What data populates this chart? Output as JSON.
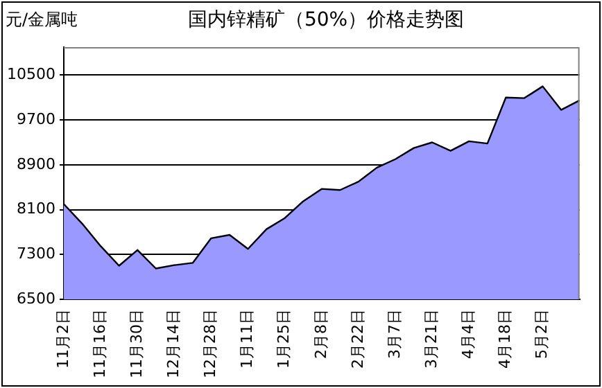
{
  "chart_data": {
    "type": "area",
    "title": "国内锌精矿（50%）价格走势图",
    "ylabel": "元/金属吨",
    "categories": [
      "11月2日",
      null,
      "11月16日",
      null,
      "11月30日",
      null,
      "12月14日",
      null,
      "12月28日",
      null,
      "1月11日",
      null,
      "1月25日",
      null,
      "2月8日",
      null,
      "2月22日",
      null,
      "3月7日",
      null,
      "3月21日",
      null,
      "4月4日",
      null,
      "4月18日",
      null,
      "5月2日",
      null,
      null
    ],
    "series": [
      {
        "color": "#9999ff",
        "values": [
          8200,
          7850,
          7450,
          7100,
          7380,
          7050,
          7110,
          7150,
          7590,
          7650,
          7400,
          7750,
          7950,
          8250,
          8470,
          8450,
          8600,
          8850,
          9000,
          9200,
          9300,
          9150,
          9320,
          9280,
          10100,
          10090,
          10300,
          9880,
          10050
        ]
      }
    ],
    "ylim": [
      6500,
      11000
    ],
    "yticks": [
      6500,
      7300,
      8100,
      8900,
      9700,
      10500
    ],
    "grid": "y",
    "legend": false
  }
}
